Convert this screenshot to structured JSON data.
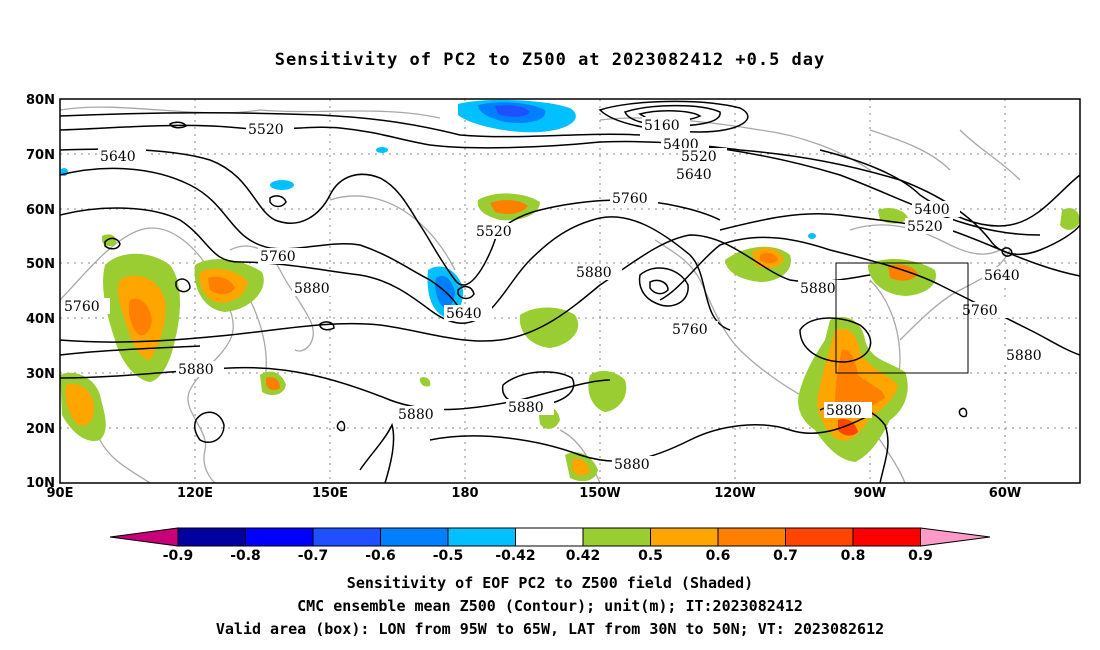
{
  "title": "Sensitivity of PC2 to Z500 at 2023082412 +0.5 day",
  "map": {
    "lat_labels": [
      "80N",
      "70N",
      "60N",
      "50N",
      "40N",
      "30N",
      "20N",
      "10N"
    ],
    "lon_labels": [
      "90E",
      "120E",
      "150E",
      "180",
      "150W",
      "120W",
      "90W",
      "60W"
    ],
    "valid_box": {
      "lon_from": "95W",
      "lon_to": "65W",
      "lat_from": "30N",
      "lat_to": "50N"
    },
    "contour_labels": [
      "5520",
      "5640",
      "5160",
      "5400",
      "5520",
      "5640",
      "5760",
      "5520",
      "5400",
      "5520",
      "5760",
      "5880",
      "5640",
      "5760",
      "5880",
      "5760",
      "5880",
      "5640",
      "5880",
      "5880",
      "5760",
      "5880",
      "5880",
      "5880",
      "5880"
    ]
  },
  "colorbar": {
    "labels": [
      "-0.9",
      "-0.8",
      "-0.7",
      "-0.6",
      "-0.5",
      "-0.42",
      "0.42",
      "0.5",
      "0.6",
      "0.7",
      "0.8",
      "0.9"
    ],
    "colors": [
      "#c8007a",
      "#0000a0",
      "#0000ff",
      "#1f4fff",
      "#0080ff",
      "#00c0ff",
      "#ffffff",
      "#9acd32",
      "#ffa500",
      "#ff7f00",
      "#ff4500",
      "#ff0000",
      "#ff9ac8"
    ]
  },
  "footer": {
    "line1": "Sensitivity of EOF PC2 to Z500 field (Shaded)",
    "line2": "CMC ensemble mean Z500 (Contour); unit(m); IT:2023082412",
    "line3": "Valid area (box): LON from 95W to 65W, LAT from 30N to 50N; VT: 2023082612"
  }
}
